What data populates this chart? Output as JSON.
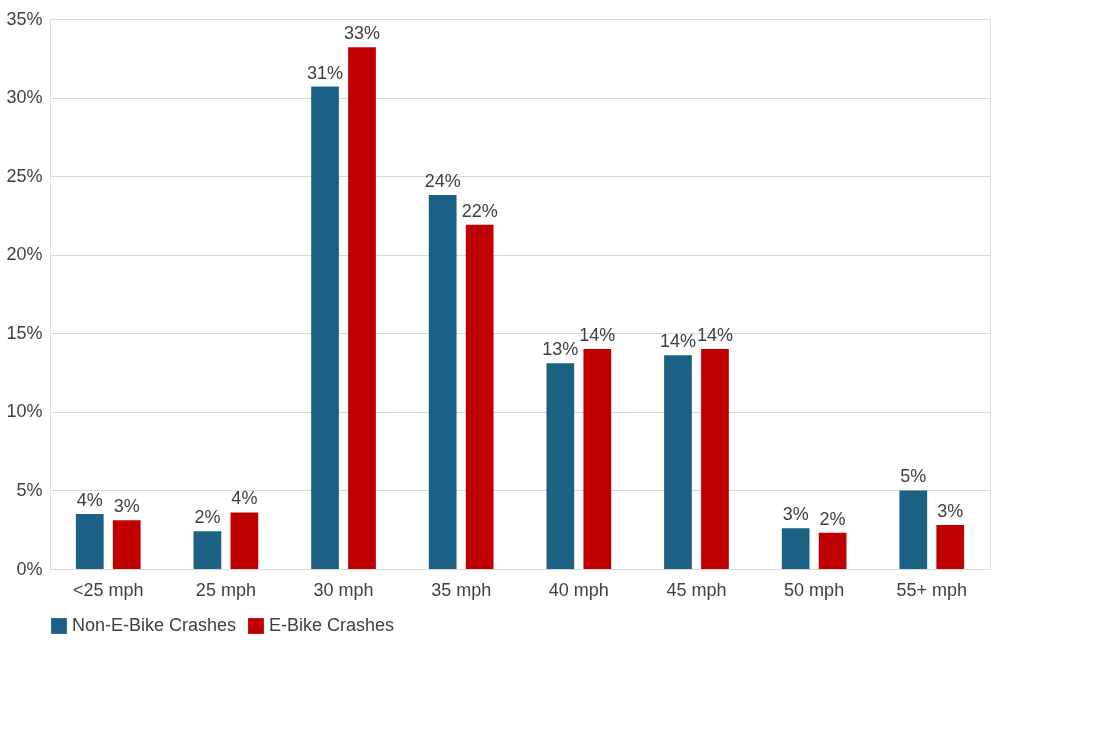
{
  "chart_data": {
    "type": "bar",
    "categories": [
      "<25 mph",
      "25 mph",
      "30 mph",
      "35 mph",
      "40 mph",
      "45 mph",
      "50 mph",
      "55+ mph"
    ],
    "series": [
      {
        "name": "Non-E-Bike Crashes",
        "color": "#1b6183",
        "values": [
          3.5,
          2.4,
          30.7,
          23.8,
          13.1,
          13.6,
          2.6,
          5.0
        ],
        "value_labels": [
          "4%",
          "2%",
          "31%",
          "24%",
          "13%",
          "14%",
          "3%",
          "5%"
        ]
      },
      {
        "name": "E-Bike Crashes",
        "color": "#c00000",
        "values": [
          3.1,
          3.6,
          33.2,
          21.9,
          14.0,
          14.0,
          2.3,
          2.8
        ],
        "value_labels": [
          "3%",
          "4%",
          "33%",
          "22%",
          "14%",
          "14%",
          "2%",
          "3%"
        ]
      }
    ],
    "ylim": [
      0,
      35
    ],
    "yticks": [
      {
        "value": 0,
        "label": "0%"
      },
      {
        "value": 5,
        "label": "5%"
      },
      {
        "value": 10,
        "label": "10%"
      },
      {
        "value": 15,
        "label": "15%"
      },
      {
        "value": 20,
        "label": "20%"
      },
      {
        "value": 25,
        "label": "25%"
      },
      {
        "value": 30,
        "label": "30%"
      },
      {
        "value": 35,
        "label": "35%"
      }
    ],
    "grid": "y",
    "legend": "bottom"
  }
}
